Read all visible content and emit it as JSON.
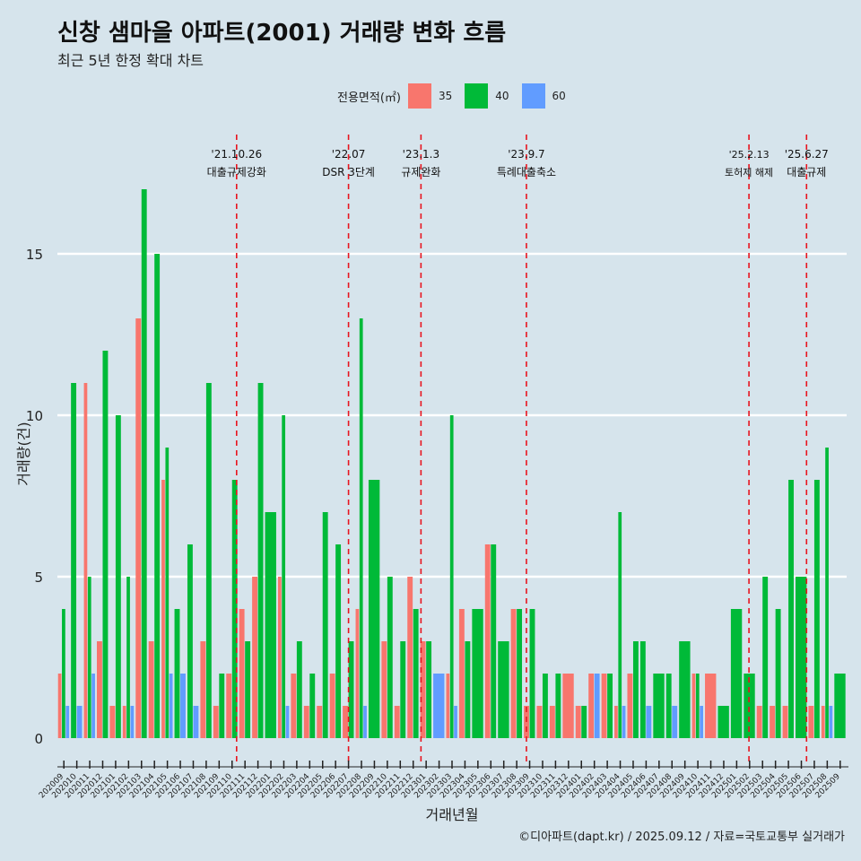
{
  "title": "신창 샘마을 아파트(2001) 거래량 변화 흐름",
  "subtitle": "최근 5년 한정 확대 차트",
  "caption": "©디아파트(dapt.kr) / 2025.09.12 / 자료=국토교통부 실거래가",
  "legend": {
    "title": "전용면적(㎡)",
    "items": [
      {
        "label": "35",
        "color": "#f8766d"
      },
      {
        "label": "40",
        "color": "#00ba38"
      },
      {
        "label": "60",
        "color": "#619cff"
      }
    ]
  },
  "chart_data": {
    "type": "bar",
    "xlabel": "거래년월",
    "ylabel": "거래량(건)",
    "ylim": [
      0,
      17
    ],
    "yticks": [
      0,
      5,
      10,
      15
    ],
    "grid": true,
    "legend_position": "top",
    "categories": [
      "202009",
      "202010",
      "202011",
      "202012",
      "202101",
      "202102",
      "202103",
      "202104",
      "202105",
      "202106",
      "202107",
      "202108",
      "202109",
      "202110",
      "202111",
      "202112",
      "202201",
      "202202",
      "202203",
      "202204",
      "202205",
      "202206",
      "202207",
      "202208",
      "202209",
      "202210",
      "202211",
      "202212",
      "202301",
      "202302",
      "202303",
      "202304",
      "202305",
      "202306",
      "202307",
      "202308",
      "202309",
      "202310",
      "202311",
      "202312",
      "202401",
      "202402",
      "202403",
      "202404",
      "202405",
      "202406",
      "202407",
      "202408",
      "202409",
      "202410",
      "202411",
      "202412",
      "202501",
      "202502",
      "202503",
      "202504",
      "202505",
      "202506",
      "202507",
      "202508",
      "202509"
    ],
    "series": [
      {
        "name": "35",
        "values": [
          2,
          0,
          11,
          3,
          1,
          1,
          13,
          3,
          8,
          0,
          0,
          3,
          1,
          2,
          4,
          5,
          0,
          5,
          2,
          1,
          1,
          2,
          1,
          4,
          0,
          3,
          1,
          5,
          3,
          0,
          2,
          4,
          0,
          6,
          0,
          4,
          1,
          1,
          1,
          2,
          1,
          2,
          2,
          1,
          2,
          0,
          0,
          0,
          0,
          2,
          2,
          0,
          0,
          0,
          1,
          1,
          1,
          0,
          1,
          1,
          0
        ]
      },
      {
        "name": "40",
        "values": [
          4,
          11,
          5,
          12,
          10,
          5,
          17,
          15,
          9,
          4,
          6,
          11,
          2,
          8,
          3,
          11,
          7,
          10,
          3,
          2,
          7,
          6,
          3,
          13,
          8,
          5,
          3,
          4,
          3,
          0,
          10,
          3,
          4,
          6,
          3,
          4,
          4,
          2,
          2,
          0,
          1,
          0,
          2,
          7,
          3,
          3,
          2,
          2,
          3,
          2,
          0,
          1,
          4,
          2,
          5,
          4,
          8,
          5,
          8,
          9,
          2
        ]
      },
      {
        "name": "60",
        "values": [
          1,
          1,
          2,
          0,
          0,
          1,
          0,
          0,
          2,
          2,
          1,
          0,
          0,
          0,
          0,
          0,
          0,
          1,
          0,
          0,
          0,
          0,
          0,
          1,
          0,
          0,
          0,
          0,
          0,
          2,
          1,
          0,
          0,
          0,
          0,
          0,
          0,
          0,
          0,
          0,
          0,
          2,
          0,
          1,
          0,
          1,
          0,
          1,
          0,
          1,
          0,
          0,
          0,
          0,
          0,
          0,
          0,
          0,
          0,
          1,
          0
        ]
      }
    ],
    "annotations": [
      {
        "date_label": "'21.10.26",
        "text": "대출규제강화",
        "category": "202110",
        "offset": 0.85
      },
      {
        "date_label": "'22.07",
        "text": "DSR 3단계",
        "category": "202207",
        "offset": 0.5
      },
      {
        "date_label": "'23.1.3",
        "text": "규제완화",
        "category": "202301",
        "offset": 0.1
      },
      {
        "date_label": "'23.9.7",
        "text": "특례대출축소",
        "category": "202309",
        "offset": 0.25
      },
      {
        "date_label": "'25.2.13",
        "text": "토허제 해제",
        "category": "202502",
        "offset": 0.45
      },
      {
        "date_label": "'25.6.27",
        "text": "대출규제",
        "category": "202506",
        "offset": 0.9
      }
    ]
  }
}
